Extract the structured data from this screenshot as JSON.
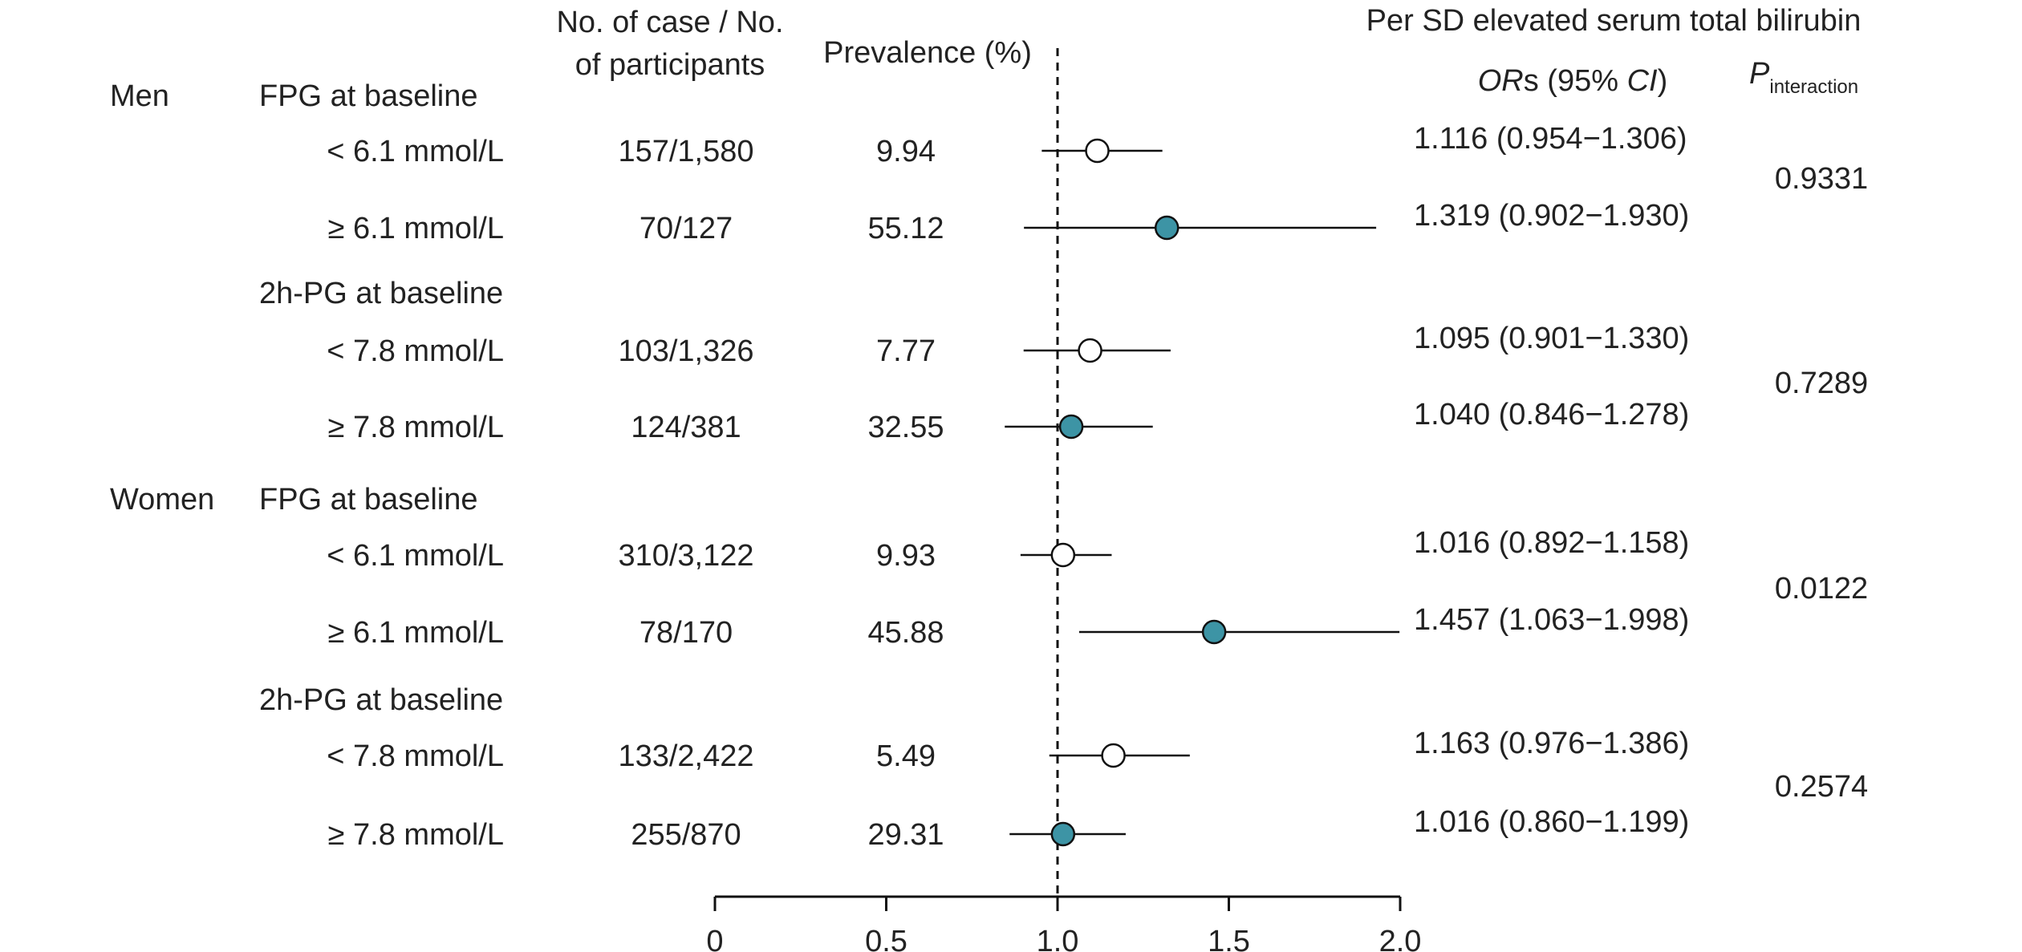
{
  "chart_data": {
    "type": "forest",
    "headers": {
      "cases": [
        "No. of case / No.",
        "of participants"
      ],
      "prevalence": "Prevalence (%)",
      "effect_title": "Per SD elevated serum total bilirubin",
      "or_label_italic": "OR",
      "or_label_rest": "s (95% ",
      "or_label_ci": "CI",
      "or_label_close": ")",
      "p_main": "P",
      "p_sub": "interaction"
    },
    "groups": [
      {
        "sex": "Men",
        "subgroups": [
          {
            "label": "FPG at baseline",
            "p_interaction": "0.9331",
            "rows": [
              {
                "level": "< 6.1 mmol/L",
                "cases": "157/1,580",
                "prevalence": "9.94",
                "or": 1.116,
                "lo": 0.954,
                "hi": 1.306,
                "or_text": "1.116 (0.954−1.306)",
                "filled": false
              },
              {
                "level": "≥ 6.1 mmol/L",
                "cases": "70/127",
                "prevalence": "55.12",
                "or": 1.319,
                "lo": 0.902,
                "hi": 1.93,
                "or_text": "1.319 (0.902−1.930)",
                "filled": true
              }
            ]
          },
          {
            "label": "2h-PG at baseline",
            "p_interaction": "0.7289",
            "rows": [
              {
                "level": "< 7.8 mmol/L",
                "cases": "103/1,326",
                "prevalence": "7.77",
                "or": 1.095,
                "lo": 0.901,
                "hi": 1.33,
                "or_text": "1.095 (0.901−1.330)",
                "filled": false
              },
              {
                "level": "≥ 7.8 mmol/L",
                "cases": "124/381",
                "prevalence": "32.55",
                "or": 1.04,
                "lo": 0.846,
                "hi": 1.278,
                "or_text": "1.040 (0.846−1.278)",
                "filled": true
              }
            ]
          }
        ]
      },
      {
        "sex": "Women",
        "subgroups": [
          {
            "label": "FPG at baseline",
            "p_interaction": "0.0122",
            "rows": [
              {
                "level": "< 6.1 mmol/L",
                "cases": "310/3,122",
                "prevalence": "9.93",
                "or": 1.016,
                "lo": 0.892,
                "hi": 1.158,
                "or_text": "1.016 (0.892−1.158)",
                "filled": false
              },
              {
                "level": "≥ 6.1 mmol/L",
                "cases": "78/170",
                "prevalence": "45.88",
                "or": 1.457,
                "lo": 1.063,
                "hi": 1.998,
                "or_text": "1.457 (1.063−1.998)",
                "filled": true
              }
            ]
          },
          {
            "label": "2h-PG at baseline",
            "p_interaction": "0.2574",
            "rows": [
              {
                "level": "< 7.8 mmol/L",
                "cases": "133/2,422",
                "prevalence": "5.49",
                "or": 1.163,
                "lo": 0.976,
                "hi": 1.386,
                "or_text": "1.163 (0.976−1.386)",
                "filled": false
              },
              {
                "level": "≥ 7.8 mmol/L",
                "cases": "255/870",
                "prevalence": "29.31",
                "or": 1.016,
                "lo": 0.86,
                "hi": 1.199,
                "or_text": "1.016 (0.860−1.199)",
                "filled": true
              }
            ]
          }
        ]
      }
    ],
    "xlim": [
      0,
      2.0
    ],
    "xticks": [
      0,
      0.5,
      1.0,
      1.5,
      2.0
    ],
    "xtick_labels": [
      "0",
      "0.5",
      "1.0",
      "1.5",
      "2.0"
    ],
    "reference_line": 1.0,
    "colors": {
      "filled_marker": "#3d94a5",
      "open_marker": "#ffffff",
      "line": "#111111"
    }
  }
}
